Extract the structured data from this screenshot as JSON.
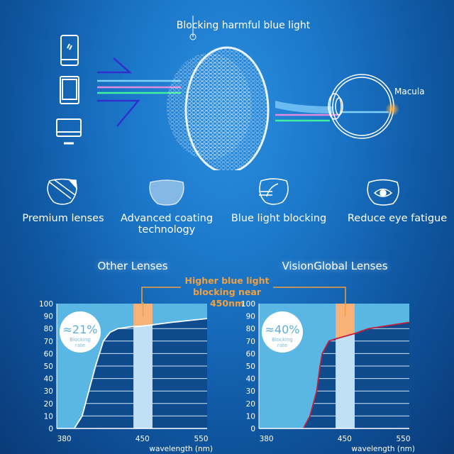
{
  "hero": {
    "lens_label": "Blocking harmful blue light",
    "eye_label": "Macula",
    "devices": [
      "phone-icon",
      "tablet-icon",
      "monitor-icon"
    ]
  },
  "features": [
    {
      "icon": "premium-lens-icon",
      "label": "Premium lenses"
    },
    {
      "icon": "coating-lens-icon",
      "label": "Advanced coating technology"
    },
    {
      "icon": "blue-light-lens-icon",
      "label": "Blue light blocking"
    },
    {
      "icon": "eye-lens-icon",
      "label": "Reduce eye fatigue"
    }
  ],
  "comparison_note": "Higher blue light blocking near 450nm",
  "colors": {
    "accent": "#f0a040",
    "curve_other": "#ffffff",
    "curve_vision": "#c0203a",
    "above_fill": "#5ab6e2",
    "below_fill": "#0e4a8c",
    "band_top": "#f7b27a",
    "band_bottom": "#bfe0f6"
  },
  "chart_data": [
    {
      "type": "line",
      "title": "Other Lenses",
      "xlabel": "wavelength (nm)",
      "ylabel": "",
      "x_ticks": [
        380,
        450,
        550
      ],
      "y_ticks": [
        0,
        10,
        20,
        30,
        40,
        50,
        60,
        70,
        80,
        90,
        100
      ],
      "ylim": [
        0,
        100
      ],
      "highlight_band": [
        442,
        467
      ],
      "badge": {
        "value": "≈21%",
        "label": "Blocking rate"
      },
      "points": [
        [
          389,
          0
        ],
        [
          396,
          10
        ],
        [
          402,
          30
        ],
        [
          408,
          50
        ],
        [
          415,
          70
        ],
        [
          421,
          77
        ],
        [
          428,
          80
        ],
        [
          440,
          81.5
        ],
        [
          450,
          82
        ],
        [
          500,
          85
        ],
        [
          560,
          88
        ]
      ]
    },
    {
      "type": "line",
      "title": "VisionGlobal Lenses",
      "xlabel": "wavelength (nm)",
      "ylabel": "",
      "x_ticks": [
        380,
        450,
        550
      ],
      "y_ticks": [
        0,
        10,
        20,
        30,
        40,
        50,
        60,
        70,
        80,
        90,
        100
      ],
      "ylim": [
        0,
        100
      ],
      "highlight_band": [
        442,
        467
      ],
      "badge": {
        "value": "≈40%",
        "label": "Blocking rate"
      },
      "points": [
        [
          413,
          0
        ],
        [
          419,
          10
        ],
        [
          425,
          30
        ],
        [
          428,
          50
        ],
        [
          430,
          60
        ],
        [
          436,
          70
        ],
        [
          443,
          72
        ],
        [
          467,
          76
        ],
        [
          491,
          80
        ],
        [
          560,
          85
        ]
      ]
    }
  ]
}
